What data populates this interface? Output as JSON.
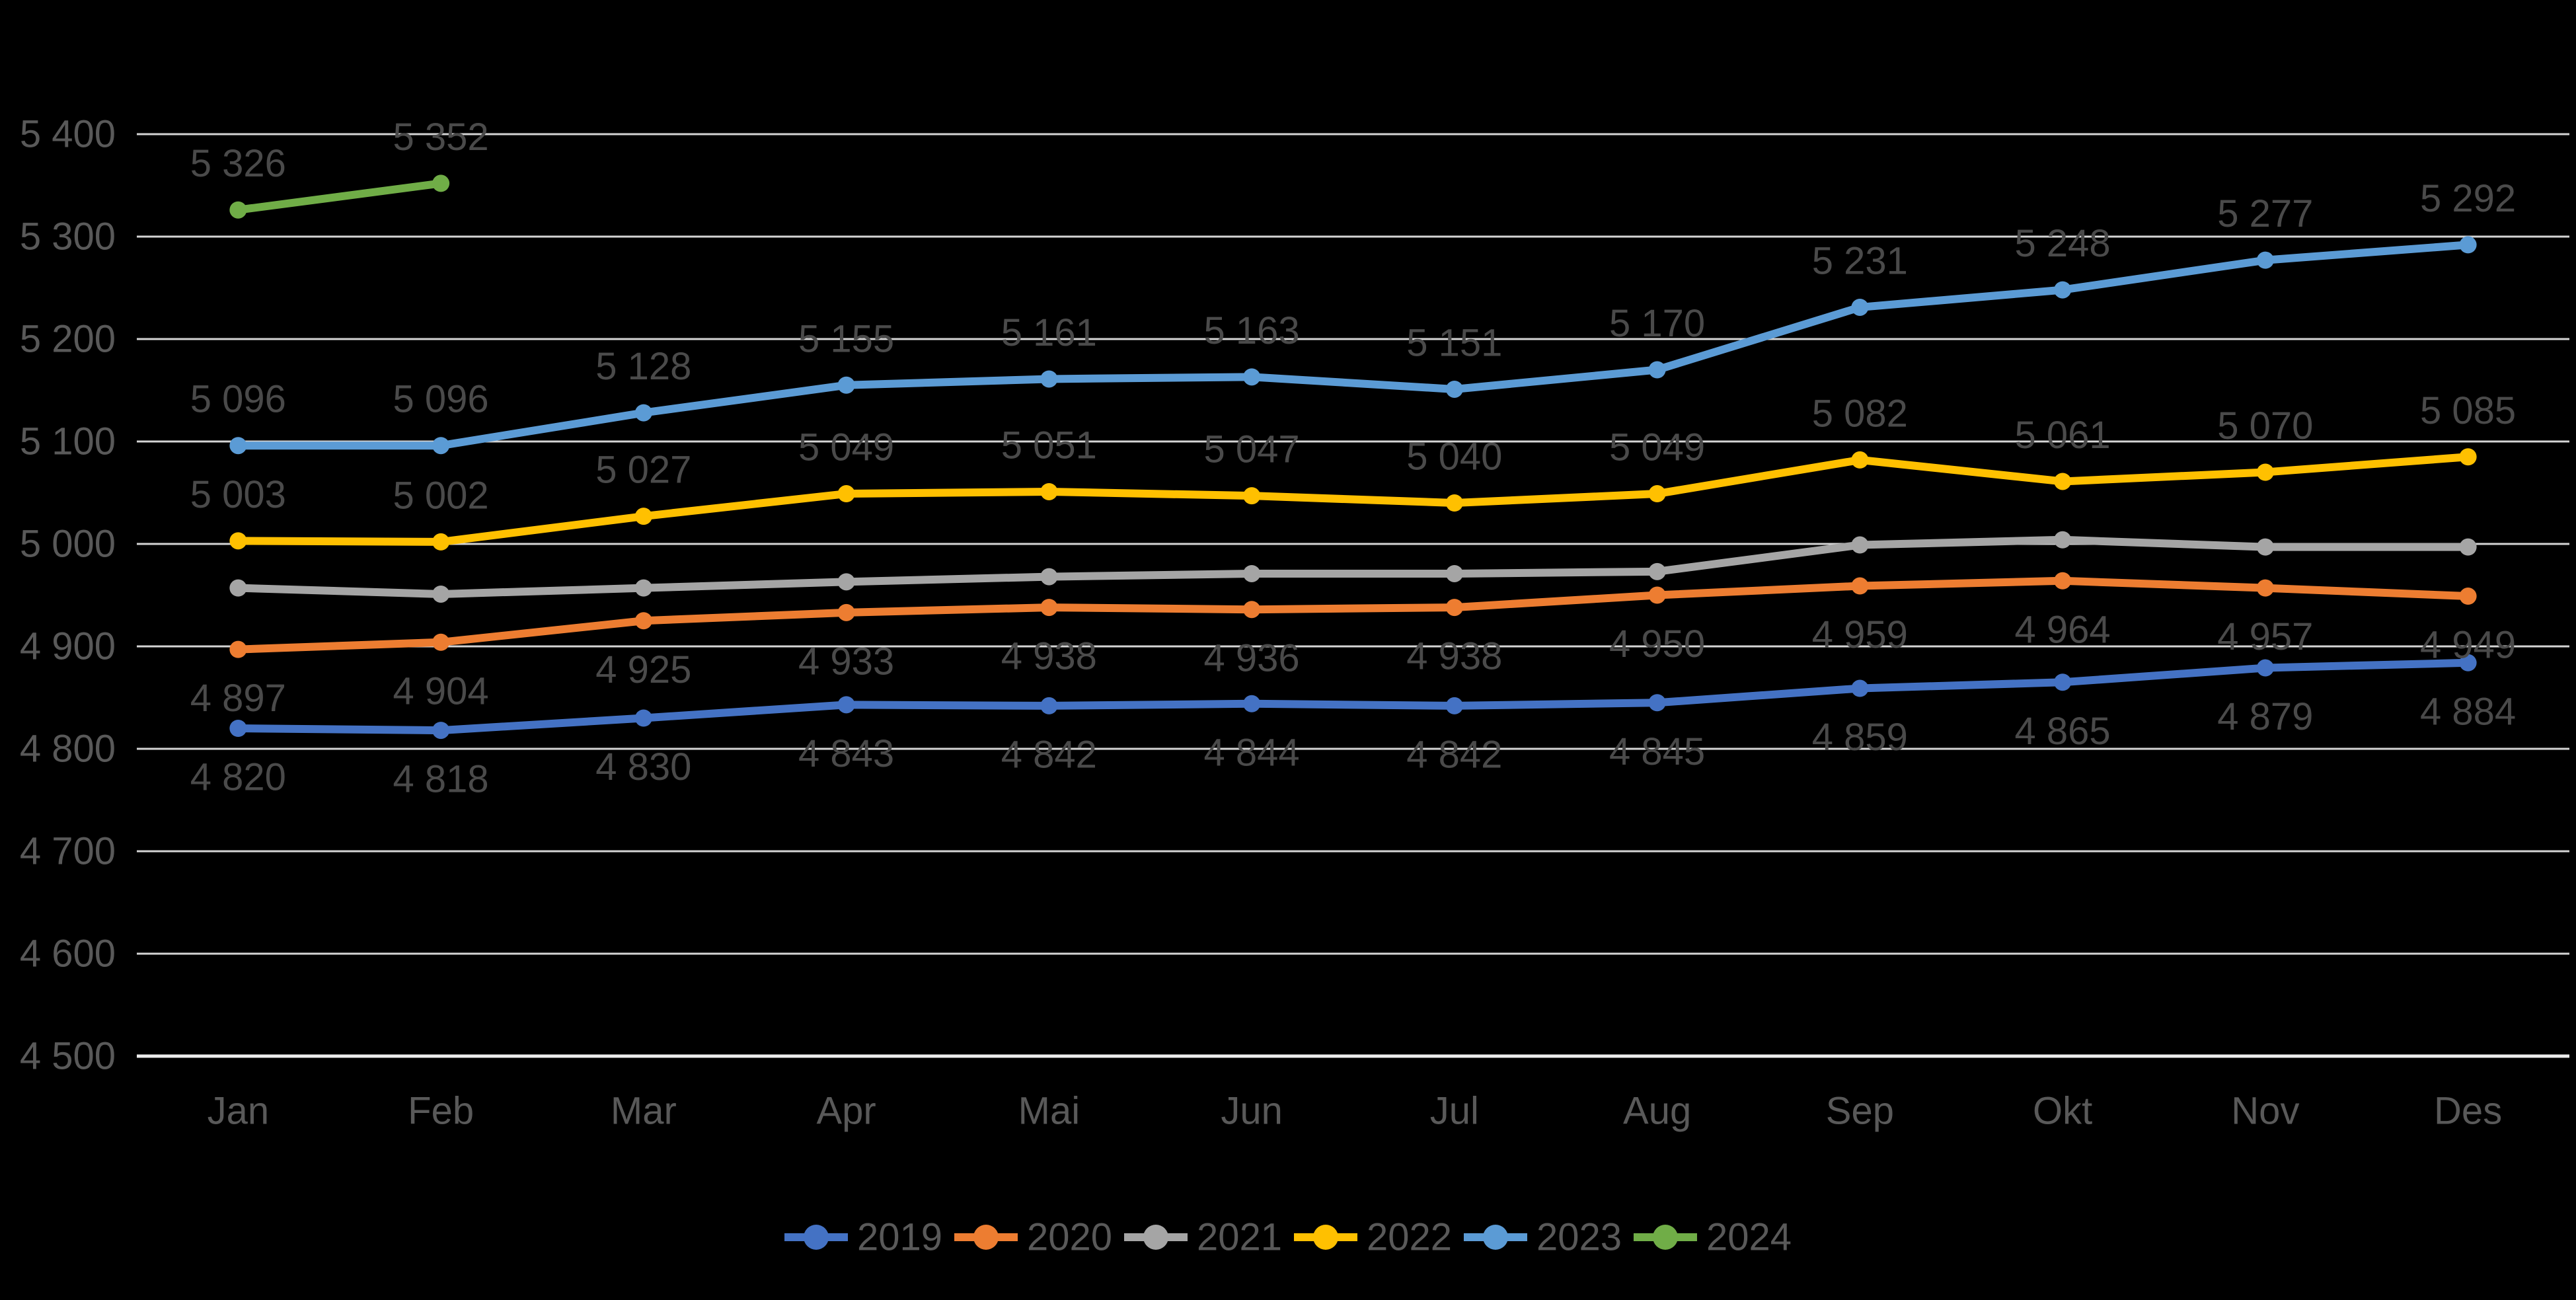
{
  "background": "#000000",
  "style": {
    "gridline_color": "#D4D4D4",
    "axis_line_color": "#EDEDED",
    "axis_text_color": "#595959",
    "data_label_color": "#4A4A4A",
    "legend_text_color": "#595959"
  },
  "chart_data": {
    "type": "line",
    "title": "",
    "categories": [
      "Jan",
      "Feb",
      "Mar",
      "Apr",
      "Mai",
      "Jun",
      "Jul",
      "Aug",
      "Sep",
      "Okt",
      "Nov",
      "Des"
    ],
    "series": [
      {
        "name": "2019",
        "color": "#4472C4",
        "label_placement": "below",
        "values": [
          4820,
          4818,
          4830,
          4843,
          4842,
          4844,
          4842,
          4845,
          4859,
          4865,
          4879,
          4884
        ]
      },
      {
        "name": "2020",
        "color": "#ED7D31",
        "label_placement": "below",
        "values": [
          4897,
          4904,
          4925,
          4933,
          4938,
          4936,
          4938,
          4950,
          4959,
          4964,
          4957,
          4949
        ]
      },
      {
        "name": "2021",
        "color": "#A5A5A5",
        "label_placement": "none",
        "values": [
          4957,
          4951,
          4957,
          4963,
          4968,
          4971,
          4971,
          4973,
          4999,
          5004,
          4997,
          4997
        ],
        "note": "no data labels shown in chart; values estimated from line position"
      },
      {
        "name": "2022",
        "color": "#FFC000",
        "label_placement": "above",
        "values": [
          5003,
          5002,
          5027,
          5049,
          5051,
          5047,
          5040,
          5049,
          5082,
          5061,
          5070,
          5085
        ]
      },
      {
        "name": "2023",
        "color": "#5B9BD5",
        "label_placement": "above",
        "values": [
          5096,
          5096,
          5128,
          5155,
          5161,
          5163,
          5151,
          5170,
          5231,
          5248,
          5277,
          5292
        ]
      },
      {
        "name": "2024",
        "color": "#70AD47",
        "label_placement": "above",
        "values": [
          5326,
          5352
        ]
      }
    ],
    "ylim": [
      4500,
      5400
    ],
    "ytick_step": 100,
    "y_tick_labels": [
      "4 500",
      "4 600",
      "4 700",
      "4 800",
      "4 900",
      "5 000",
      "5 100",
      "5 200",
      "5 300",
      "5 400"
    ],
    "grid": true,
    "xlabel": "",
    "ylabel": "",
    "legend_position": "bottom",
    "legend_entries": [
      "2019",
      "2020",
      "2021",
      "2022",
      "2023",
      "2024"
    ],
    "number_format": "space thousands separator"
  }
}
